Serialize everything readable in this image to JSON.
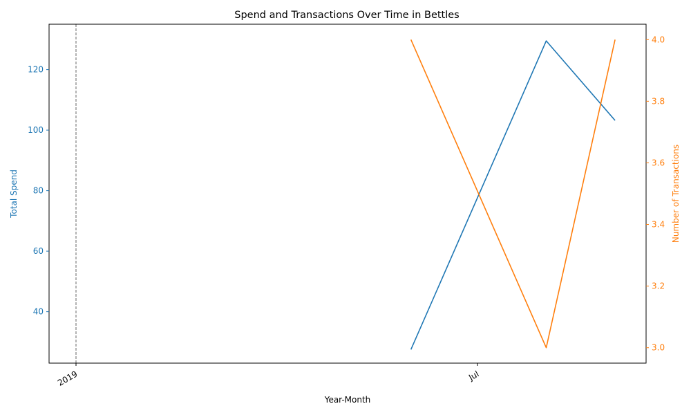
{
  "chart_data": {
    "type": "line",
    "title": "Spend and Transactions Over Time in Bettles",
    "xlabel": "Year-Month",
    "ylabel_left": "Total Spend",
    "ylabel_right": "Number of Transactions",
    "x_dates": [
      "2019-06",
      "2019-08",
      "2019-09"
    ],
    "x_range": [
      "2019-01-01",
      "2019-09-15"
    ],
    "x_ticks": [
      {
        "date": "2019-01-01",
        "label": "2019"
      },
      {
        "date": "2019-07-01",
        "label": "Jul"
      }
    ],
    "marker_line": {
      "date": "2019-01-01",
      "style": "dashed",
      "color": "#808080"
    },
    "series": [
      {
        "axis": "left",
        "color": "#1f77b4",
        "values": [
          27.5,
          129.5,
          103.2
        ]
      },
      {
        "axis": "right",
        "color": "#ff7f0e",
        "values": [
          4.0,
          3.0,
          4.0
        ]
      }
    ],
    "y_left": {
      "range": [
        23,
        135
      ],
      "ticks": [
        40,
        60,
        80,
        100,
        120
      ],
      "tick_labels": [
        "40",
        "60",
        "80",
        "100",
        "120"
      ],
      "color": "#1f77b4"
    },
    "y_right": {
      "range": [
        2.95,
        4.05
      ],
      "ticks": [
        3.0,
        3.2,
        3.4,
        3.6,
        3.8,
        4.0
      ],
      "tick_labels": [
        "3.0",
        "3.2",
        "3.4",
        "3.6",
        "3.8",
        "4.0"
      ],
      "color": "#ff7f0e"
    },
    "grid": false,
    "legend": "none"
  }
}
